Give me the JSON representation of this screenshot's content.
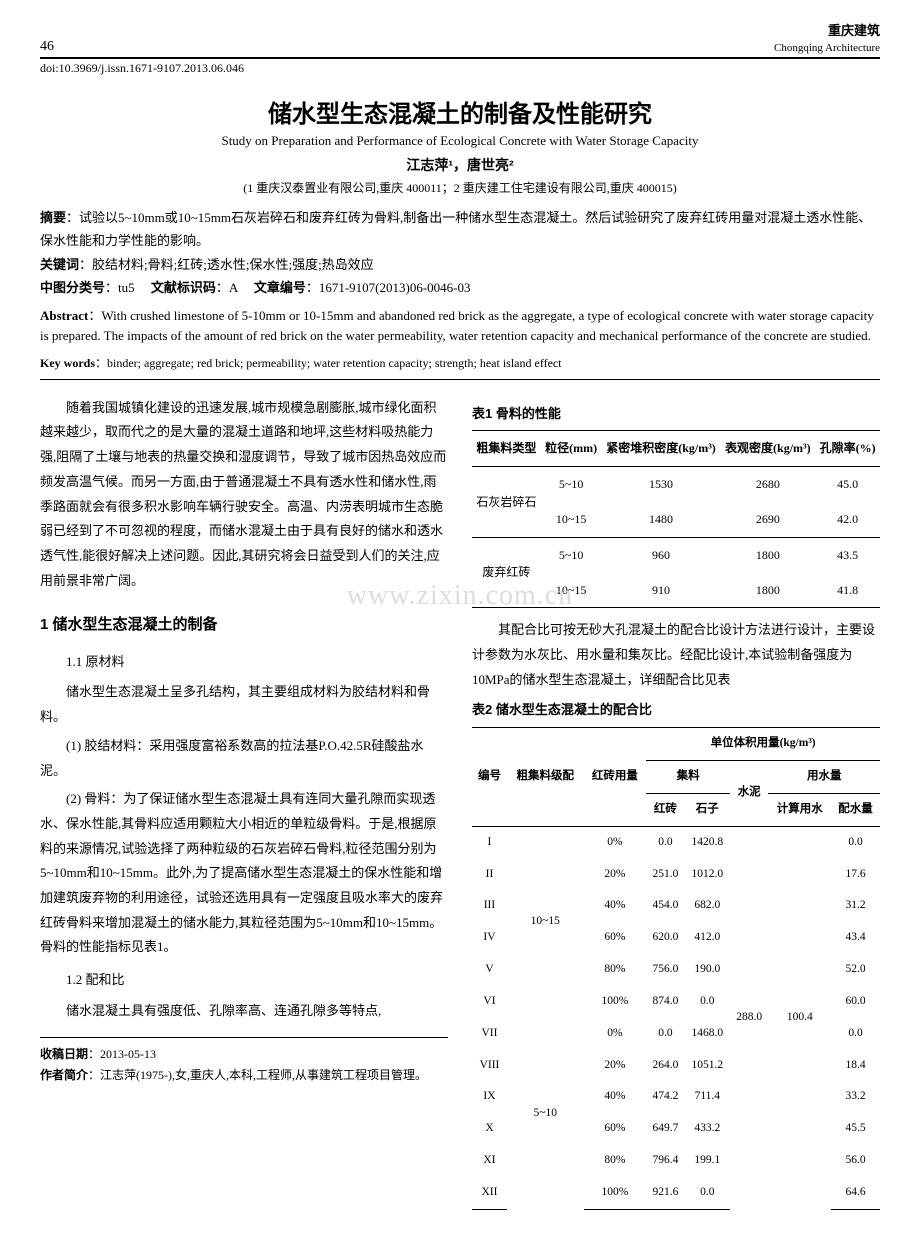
{
  "header": {
    "page_num": "46",
    "journal_zh": "重庆建筑",
    "journal_en": "Chongqing Architecture",
    "doi": "doi:10.3969/j.issn.1671-9107.2013.06.046"
  },
  "title": {
    "zh": "储水型生态混凝土的制备及性能研究",
    "en": "Study on Preparation and Performance of Ecological Concrete with Water Storage Capacity",
    "authors": "江志萍¹，唐世亮²",
    "affil": "(1 重庆汉泰置业有限公司,重庆  400011；2 重庆建工住宅建设有限公司,重庆  400015)"
  },
  "meta": {
    "abstract_zh_label": "摘要",
    "abstract_zh": "：试验以5~10mm或10~15mm石灰岩碎石和废弃红砖为骨料,制备出一种储水型生态混凝土。然后试验研究了废弃红砖用量对混凝土透水性能、保水性能和力学性能的影响。",
    "keywords_zh_label": "关键词",
    "keywords_zh": "：胶结材料;骨料;红砖;透水性;保水性;强度;热岛效应",
    "clc_label": "中图分类号",
    "clc": "：tu5",
    "doccode_label": "文献标识码",
    "doccode": "：A",
    "artid_label": "文章编号",
    "artid": "：1671-9107(2013)06-0046-03",
    "abstract_en_label": "Abstract",
    "abstract_en": "：With crushed limestone of 5-10mm or 10-15mm and abandoned red brick as the aggregate, a type of ecological concrete with water storage capacity is prepared. The impacts of the amount of red brick on the water permeability, water retention capacity and mechanical performance of the concrete are studied.",
    "keywords_en_label": "Key words",
    "keywords_en": "：binder; aggregate; red brick; permeability; water retention capacity; strength; heat island effect"
  },
  "body": {
    "intro": "随着我国城镇化建设的迅速发展,城市规模急剧膨胀,城市绿化面积越来越少，取而代之的是大量的混凝土道路和地坪,这些材料吸热能力强,阻隔了土壤与地表的热量交换和湿度调节，导致了城市因热岛效应而频发高温气候。而另一方面,由于普通混凝土不具有透水性和储水性,雨季路面就会有很多积水影响车辆行驶安全。高温、内涝表明城市生态脆弱已经到了不可忽视的程度，而储水混凝土由于具有良好的储水和透水透气性,能很好解决上述问题。因此,其研究将会日益受到人们的关注,应用前景非常广阔。",
    "sec1": "1 储水型生态混凝土的制备",
    "sub11": "1.1 原材料",
    "p11a": "储水型生态混凝土呈多孔结构，其主要组成材料为胶结材料和骨料。",
    "p11b": "(1) 胶结材料：采用强度富裕系数高的拉法基P.O.42.5R硅酸盐水泥。",
    "p11c": "(2) 骨料：为了保证储水型生态混凝土具有连同大量孔隙而实现透水、保水性能,其骨料应适用颗粒大小相近的单粒级骨料。于是,根据原料的来源情况,试验选择了两种粒级的石灰岩碎石骨料,粒径范围分别为5~10mm和10~15mm。此外,为了提高储水型生态混凝土的保水性能和增加建筑废弃物的利用途径，试验还选用具有一定强度且吸水率大的废弃红砖骨料来增加混凝土的储水能力,其粒径范围为5~10mm和10~15mm。骨料的性能指标见表1。",
    "sub12": "1.2 配和比",
    "p12": "储水混凝土具有强度低、孔隙率高、连通孔隙多等特点,",
    "rcol_p1": "其配合比可按无砂大孔混凝土的配合比设计方法进行设计，主要设计参数为水灰比、用水量和集灰比。经配比设计,本试验制备强度为10MPa的储水型生态混凝土，详细配合比见表"
  },
  "table1": {
    "title": "表1 骨料的性能",
    "headers": [
      "粗集料类型",
      "粒径(mm)",
      "紧密堆积密度(kg/m³)",
      "表观密度(kg/m³)",
      "孔隙率(%)"
    ],
    "rows": [
      {
        "type": "石灰岩碎石",
        "size": "5~10",
        "bulk": "1530",
        "app": "2680",
        "void": "45.0"
      },
      {
        "type": "",
        "size": "10~15",
        "bulk": "1480",
        "app": "2690",
        "void": "42.0"
      },
      {
        "type": "废弃红砖",
        "size": "5~10",
        "bulk": "960",
        "app": "1800",
        "void": "43.5"
      },
      {
        "type": "",
        "size": "10~15",
        "bulk": "910",
        "app": "1800",
        "void": "41.8"
      }
    ]
  },
  "table2": {
    "title": "表2 储水型生态混凝土的配合比",
    "top_header": "单位体积用量(kg/m³)",
    "col_no": "编号",
    "col_grade": "粗集料级配",
    "col_red": "红砖用量",
    "col_agg": "集料",
    "col_redb": "红砖",
    "col_stone": "石子",
    "col_cement": "水泥",
    "col_water": "用水量",
    "col_calc": "计算用水",
    "col_mix": "配水量",
    "grade_a": "10~15",
    "grade_b": "5~10",
    "cement_val": "288.0",
    "calc_val": "100.4",
    "rows": [
      {
        "no": "I",
        "red": "0%",
        "rb": "0.0",
        "st": "1420.8",
        "mx": "0.0"
      },
      {
        "no": "II",
        "red": "20%",
        "rb": "251.0",
        "st": "1012.0",
        "mx": "17.6"
      },
      {
        "no": "III",
        "red": "40%",
        "rb": "454.0",
        "st": "682.0",
        "mx": "31.2"
      },
      {
        "no": "IV",
        "red": "60%",
        "rb": "620.0",
        "st": "412.0",
        "mx": "43.4"
      },
      {
        "no": "V",
        "red": "80%",
        "rb": "756.0",
        "st": "190.0",
        "mx": "52.0"
      },
      {
        "no": "VI",
        "red": "100%",
        "rb": "874.0",
        "st": "0.0",
        "mx": "60.0"
      },
      {
        "no": "VII",
        "red": "0%",
        "rb": "0.0",
        "st": "1468.0",
        "mx": "0.0"
      },
      {
        "no": "VIII",
        "red": "20%",
        "rb": "264.0",
        "st": "1051.2",
        "mx": "18.4"
      },
      {
        "no": "IX",
        "red": "40%",
        "rb": "474.2",
        "st": "711.4",
        "mx": "33.2"
      },
      {
        "no": "X",
        "red": "60%",
        "rb": "649.7",
        "st": "433.2",
        "mx": "45.5"
      },
      {
        "no": "XI",
        "red": "80%",
        "rb": "796.4",
        "st": "199.1",
        "mx": "56.0"
      },
      {
        "no": "XII",
        "red": "100%",
        "rb": "921.6",
        "st": "0.0",
        "mx": "64.6"
      }
    ]
  },
  "footer": {
    "recv_label": "收稿日期",
    "recv": "：2013-05-13",
    "bio_label": "作者简介",
    "bio": "：江志萍(1975-),女,重庆人,本科,工程师,从事建筑工程项目管理。"
  },
  "watermark": "www.zixin.com.cn"
}
